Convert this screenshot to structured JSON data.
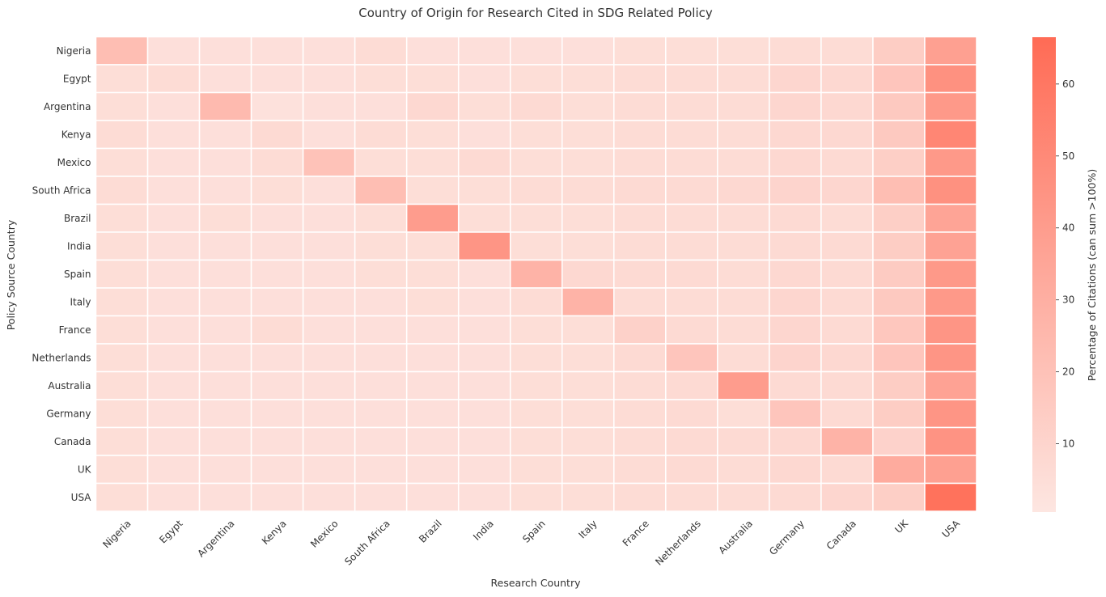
{
  "chart_data": {
    "type": "heatmap",
    "title": "Country of Origin for Research Cited in SDG Related Policy",
    "xlabel": "Research Country",
    "ylabel": "Policy Source Country",
    "x_categories": [
      "Nigeria",
      "Egypt",
      "Argentina",
      "Kenya",
      "Mexico",
      "South Africa",
      "Brazil",
      "India",
      "Spain",
      "Italy",
      "France",
      "Netherlands",
      "Australia",
      "Germany",
      "Canada",
      "UK",
      "USA"
    ],
    "y_categories": [
      "Nigeria",
      "Egypt",
      "Argentina",
      "Kenya",
      "Mexico",
      "South Africa",
      "Brazil",
      "India",
      "Spain",
      "Italy",
      "France",
      "Netherlands",
      "Australia",
      "Germany",
      "Canada",
      "UK",
      "USA"
    ],
    "values": [
      [
        22,
        4,
        4,
        4,
        4,
        6,
        4,
        4,
        4,
        4,
        5,
        5,
        5,
        6,
        6,
        14,
        38
      ],
      [
        5,
        6,
        4,
        4,
        4,
        5,
        5,
        4,
        5,
        5,
        6,
        6,
        6,
        9,
        8,
        18,
        46
      ],
      [
        5,
        4,
        24,
        3,
        4,
        4,
        8,
        5,
        7,
        5,
        6,
        6,
        6,
        9,
        8,
        16,
        42
      ],
      [
        6,
        4,
        4,
        7,
        4,
        6,
        5,
        4,
        5,
        5,
        6,
        6,
        6,
        8,
        8,
        16,
        52
      ],
      [
        5,
        4,
        4,
        6,
        20,
        5,
        5,
        7,
        5,
        5,
        6,
        6,
        6,
        8,
        7,
        13,
        42
      ],
      [
        6,
        4,
        4,
        5,
        4,
        22,
        5,
        5,
        6,
        6,
        7,
        7,
        8,
        10,
        9,
        22,
        46
      ],
      [
        5,
        4,
        5,
        4,
        4,
        5,
        40,
        5,
        5,
        5,
        6,
        6,
        6,
        7,
        6,
        13,
        36
      ],
      [
        5,
        4,
        4,
        4,
        4,
        5,
        5,
        44,
        5,
        5,
        6,
        6,
        6,
        7,
        7,
        14,
        37
      ],
      [
        5,
        4,
        4,
        4,
        4,
        5,
        5,
        4,
        28,
        8,
        7,
        7,
        6,
        8,
        7,
        15,
        42
      ],
      [
        5,
        4,
        4,
        4,
        4,
        4,
        5,
        4,
        6,
        28,
        6,
        6,
        6,
        9,
        7,
        16,
        42
      ],
      [
        5,
        4,
        4,
        6,
        4,
        4,
        4,
        4,
        5,
        5,
        12,
        7,
        6,
        9,
        7,
        17,
        44
      ],
      [
        5,
        4,
        4,
        4,
        4,
        4,
        4,
        4,
        5,
        5,
        7,
        18,
        6,
        10,
        8,
        18,
        44
      ],
      [
        5,
        4,
        4,
        4,
        4,
        4,
        4,
        4,
        5,
        5,
        6,
        7,
        40,
        7,
        7,
        14,
        37
      ],
      [
        5,
        4,
        4,
        4,
        4,
        4,
        4,
        4,
        5,
        5,
        6,
        7,
        5,
        18,
        7,
        14,
        44
      ],
      [
        5,
        4,
        4,
        4,
        4,
        4,
        4,
        4,
        5,
        5,
        6,
        7,
        7,
        8,
        28,
        11,
        45
      ],
      [
        5,
        4,
        4,
        4,
        4,
        4,
        4,
        4,
        5,
        5,
        6,
        7,
        6,
        8,
        7,
        32,
        38
      ],
      [
        5,
        4,
        4,
        4,
        4,
        4,
        4,
        4,
        5,
        5,
        6,
        6,
        6,
        7,
        9,
        13,
        63
      ]
    ],
    "colorbar": {
      "label": "Percentage of Citations (can sum >100%)",
      "min": 0.5,
      "max": 66.5,
      "ticks": [
        10,
        20,
        30,
        40,
        50,
        60
      ],
      "color_low": "#fde6e1",
      "color_high": "#ff6b55"
    }
  }
}
